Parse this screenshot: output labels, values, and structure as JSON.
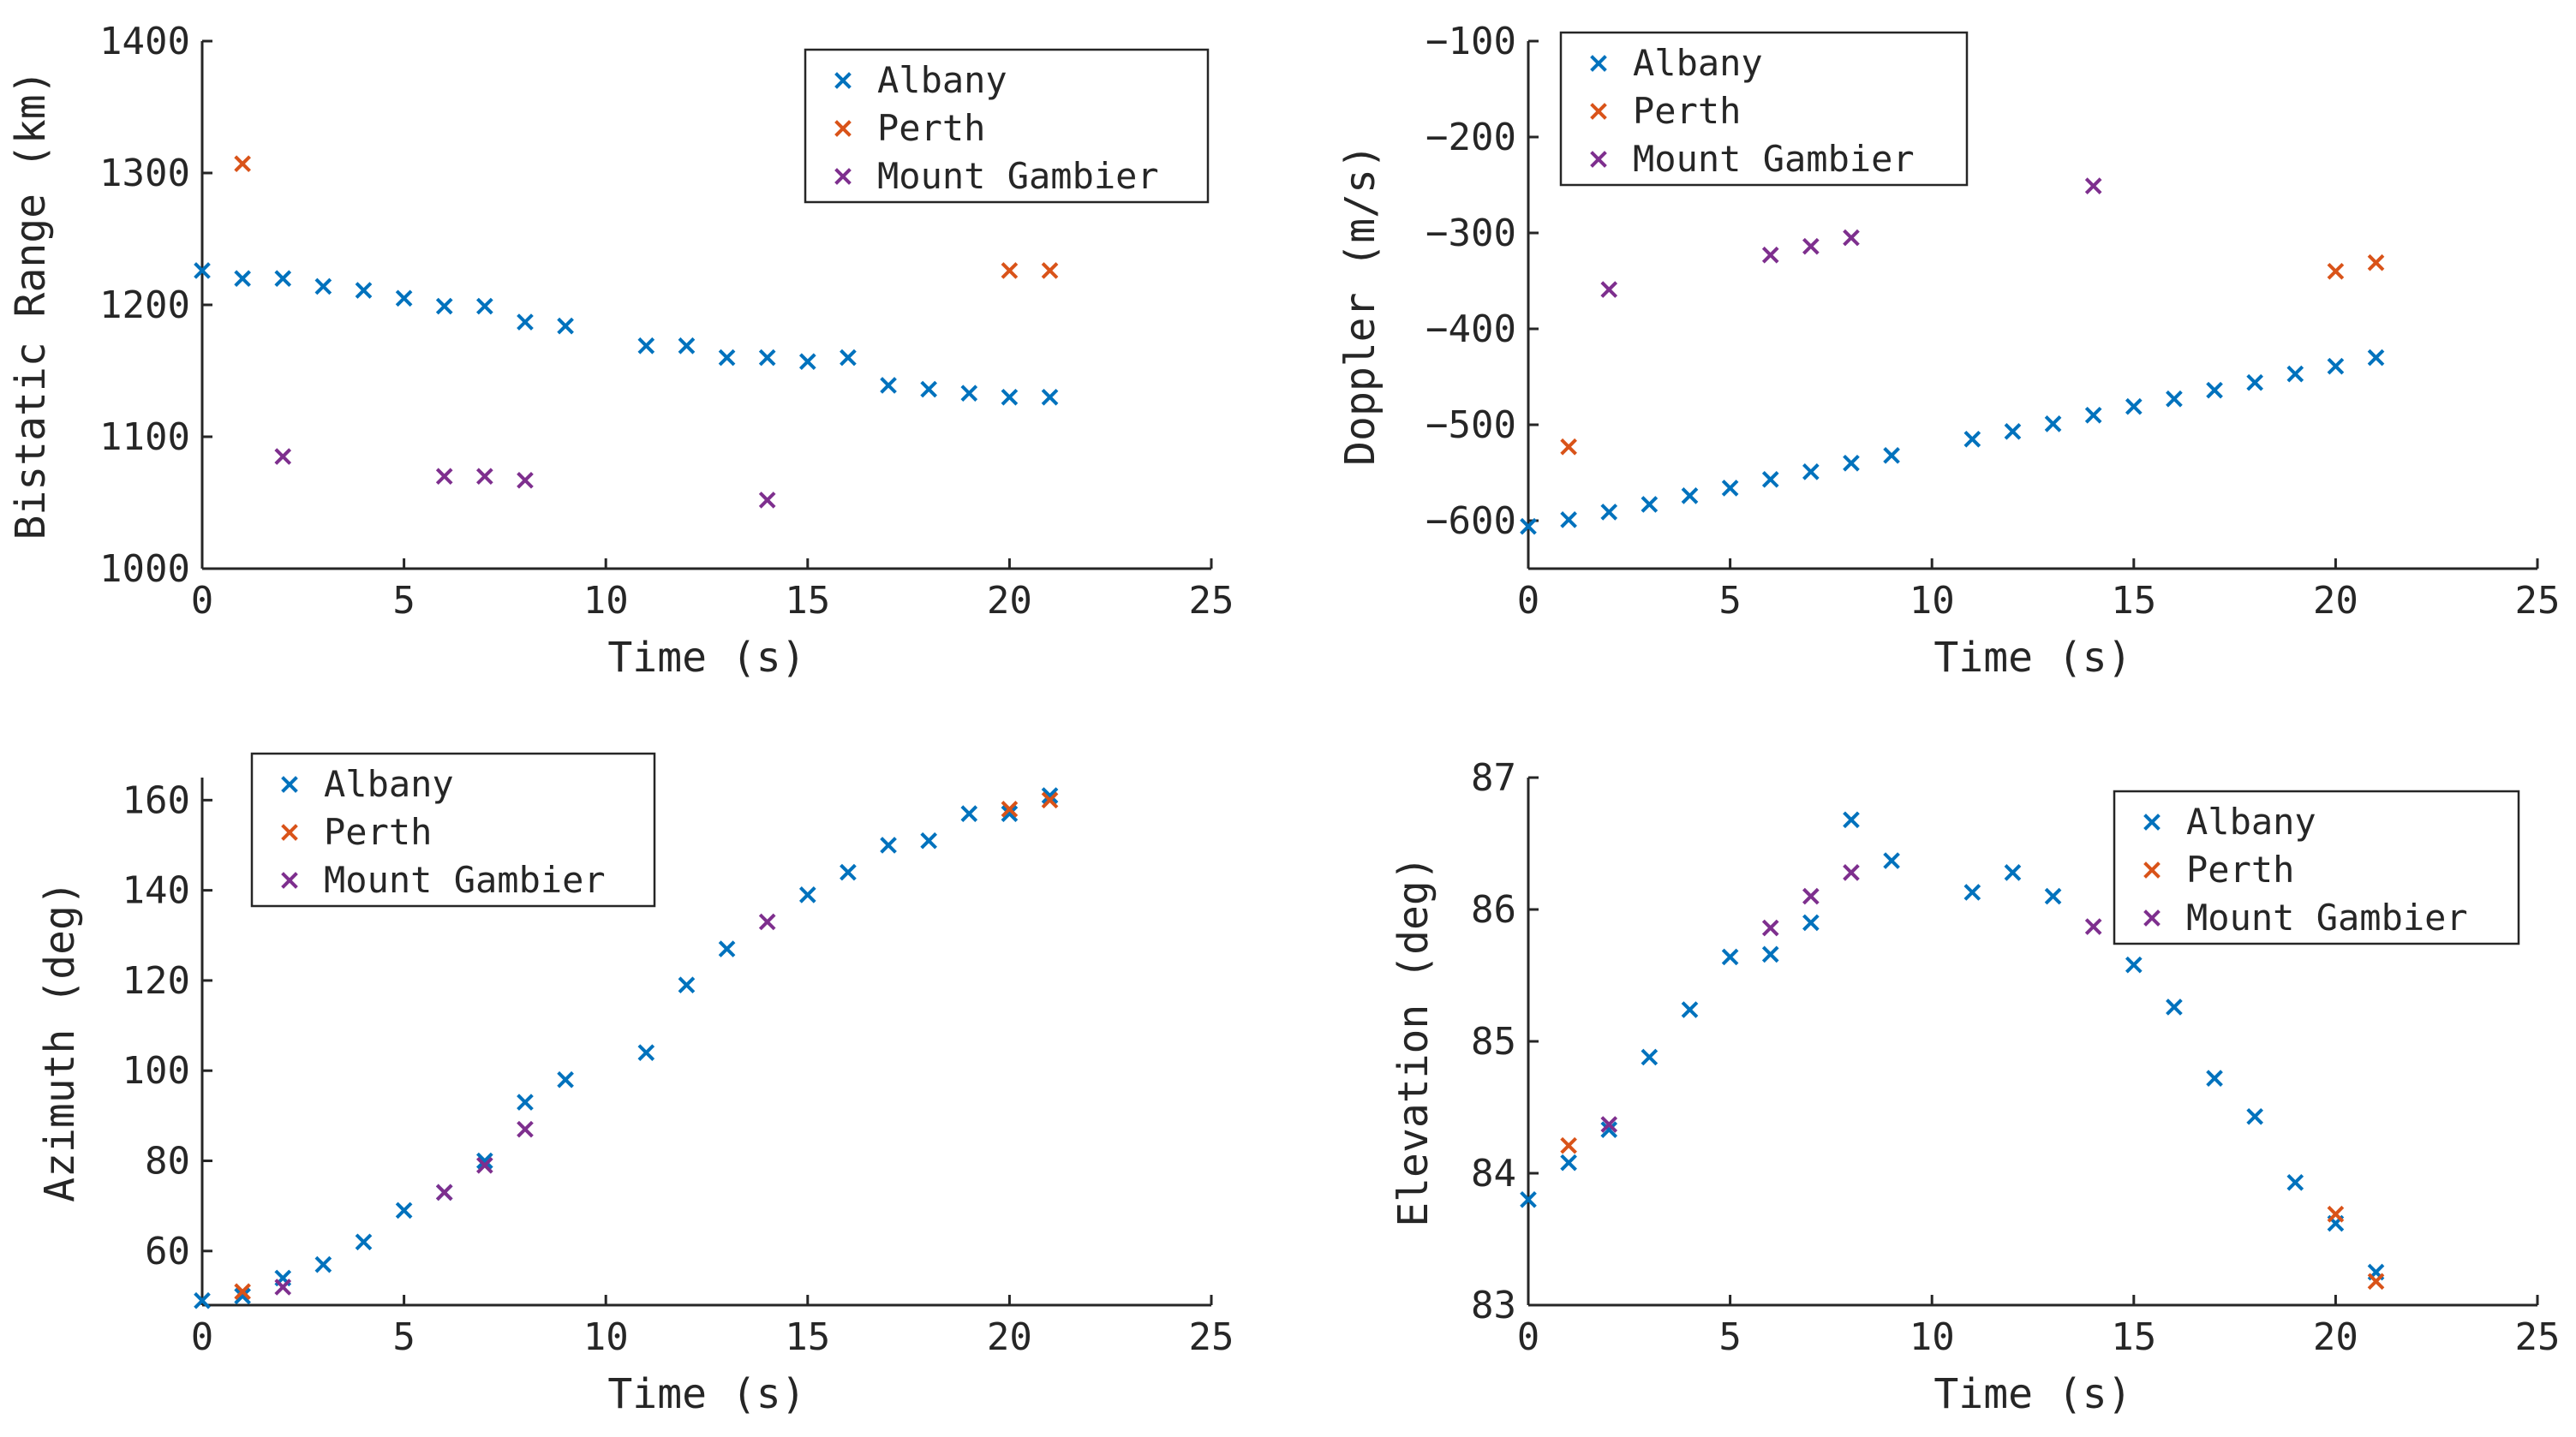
{
  "series_style": {
    "Albany": "#0072BD",
    "Perth": "#D95319",
    "Mount Gambier": "#7E2F8E"
  },
  "chart_data": [
    {
      "id": "bistatic-range",
      "type": "scatter",
      "title": "",
      "xlabel": "Time (s)",
      "ylabel": "Bistatic Range (km)",
      "xlim": [
        0,
        25
      ],
      "ylim": [
        1000,
        1400
      ],
      "xticks": [
        0,
        5,
        10,
        15,
        20,
        25
      ],
      "yticks": [
        1000,
        1100,
        1200,
        1300,
        1400
      ],
      "grid": false,
      "legend": "top-right",
      "series": [
        {
          "name": "Albany",
          "x": [
            0,
            1,
            2,
            3,
            4,
            5,
            6,
            7,
            8,
            9,
            11,
            12,
            13,
            14,
            15,
            16,
            17,
            18,
            19,
            20,
            21
          ],
          "y": [
            1226,
            1220,
            1220,
            1214,
            1211,
            1205,
            1199,
            1199,
            1187,
            1184,
            1169,
            1169,
            1160,
            1160,
            1157,
            1160,
            1139,
            1136,
            1133,
            1130,
            1130
          ]
        },
        {
          "name": "Perth",
          "x": [
            1,
            20,
            21
          ],
          "y": [
            1307,
            1226,
            1226
          ]
        },
        {
          "name": "Mount Gambier",
          "x": [
            2,
            6,
            7,
            8,
            14
          ],
          "y": [
            1085,
            1070,
            1070,
            1067,
            1052
          ]
        }
      ]
    },
    {
      "id": "doppler",
      "type": "scatter",
      "title": "",
      "xlabel": "Time (s)",
      "ylabel": "Doppler (m/s)",
      "xlim": [
        0,
        25
      ],
      "ylim": [
        -650,
        -100
      ],
      "xticks": [
        0,
        5,
        10,
        15,
        20,
        25
      ],
      "yticks": [
        -600,
        -500,
        -400,
        -300,
        -200,
        -100
      ],
      "grid": false,
      "legend": "top-left",
      "series": [
        {
          "name": "Albany",
          "x": [
            0,
            1,
            2,
            3,
            4,
            5,
            6,
            7,
            8,
            9,
            11,
            12,
            13,
            14,
            15,
            16,
            17,
            18,
            19,
            20,
            21
          ],
          "y": [
            -606,
            -599,
            -591,
            -583,
            -574,
            -566,
            -557,
            -549,
            -540,
            -532,
            -515,
            -507,
            -499,
            -490,
            -481,
            -473,
            -464,
            -456,
            -447,
            -439,
            -430
          ]
        },
        {
          "name": "Perth",
          "x": [
            1,
            20,
            21
          ],
          "y": [
            -523,
            -340,
            -331
          ]
        },
        {
          "name": "Mount Gambier",
          "x": [
            2,
            6,
            7,
            8,
            14
          ],
          "y": [
            -359,
            -323,
            -314,
            -305,
            -251
          ]
        }
      ]
    },
    {
      "id": "azimuth",
      "type": "scatter",
      "title": "",
      "xlabel": "Time (s)",
      "ylabel": "Azimuth (deg)",
      "xlim": [
        0,
        25
      ],
      "ylim": [
        48,
        165
      ],
      "xticks": [
        0,
        5,
        10,
        15,
        20,
        25
      ],
      "yticks": [
        60,
        80,
        100,
        120,
        140,
        160
      ],
      "grid": false,
      "legend": "top-left",
      "series": [
        {
          "name": "Albany",
          "x": [
            0,
            1,
            2,
            3,
            4,
            5,
            6,
            7,
            8,
            9,
            11,
            12,
            13,
            15,
            16,
            17,
            18,
            19,
            20,
            21
          ],
          "y": [
            49,
            50,
            54,
            57,
            62,
            69,
            73,
            80,
            93,
            98,
            104,
            119,
            127,
            139,
            144,
            150,
            151,
            157,
            157,
            161
          ]
        },
        {
          "name": "Perth",
          "x": [
            1,
            20,
            21
          ],
          "y": [
            51,
            158,
            160
          ]
        },
        {
          "name": "Mount Gambier",
          "x": [
            2,
            6,
            7,
            8,
            14
          ],
          "y": [
            52,
            73,
            79,
            87,
            133
          ]
        }
      ]
    },
    {
      "id": "elevation",
      "type": "scatter",
      "title": "",
      "xlabel": "Time (s)",
      "ylabel": "Elevation (deg)",
      "xlim": [
        0,
        25
      ],
      "ylim": [
        83,
        87
      ],
      "xticks": [
        0,
        5,
        10,
        15,
        20,
        25
      ],
      "yticks": [
        83,
        84,
        85,
        86,
        87
      ],
      "grid": false,
      "legend": "top-right",
      "series": [
        {
          "name": "Albany",
          "x": [
            0,
            1,
            2,
            3,
            4,
            5,
            6,
            7,
            8,
            9,
            11,
            12,
            13,
            15,
            16,
            17,
            18,
            19,
            20,
            21
          ],
          "y": [
            83.8,
            84.08,
            84.33,
            84.88,
            85.24,
            85.64,
            85.66,
            85.9,
            86.68,
            86.37,
            86.13,
            86.28,
            86.1,
            85.58,
            85.26,
            84.72,
            84.43,
            83.93,
            83.62,
            83.25
          ]
        },
        {
          "name": "Perth",
          "x": [
            1,
            20,
            21
          ],
          "y": [
            84.21,
            83.69,
            83.18
          ]
        },
        {
          "name": "Mount Gambier",
          "x": [
            2,
            6,
            7,
            8,
            14
          ],
          "y": [
            84.37,
            85.86,
            86.1,
            86.28,
            85.87
          ]
        }
      ]
    }
  ]
}
